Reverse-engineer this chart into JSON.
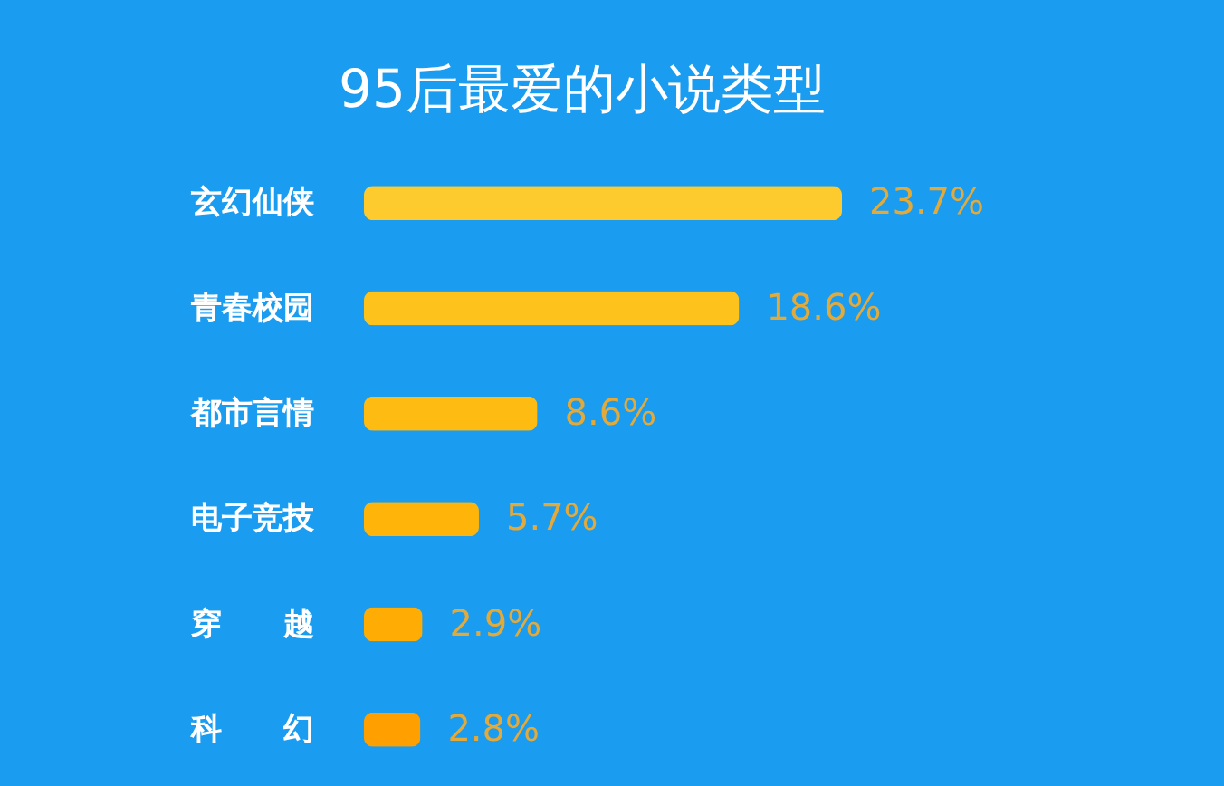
{
  "chart_data": {
    "type": "bar",
    "orientation": "horizontal",
    "title": "95后最爱的小说类型",
    "categories": [
      "玄幻仙侠",
      "青春校园",
      "都市言情",
      "电子竞技",
      "穿　　越",
      "科　　幻"
    ],
    "values": [
      23.7,
      18.6,
      8.6,
      5.7,
      2.9,
      2.8
    ],
    "value_labels": [
      "23.7%",
      "18.6%",
      "8.6%",
      "5.7%",
      "2.9%",
      "2.8%"
    ],
    "colors": [
      "#fdcb2e",
      "#fec21c",
      "#febb12",
      "#ffb40a",
      "#ffac05",
      "#ffa000"
    ]
  }
}
